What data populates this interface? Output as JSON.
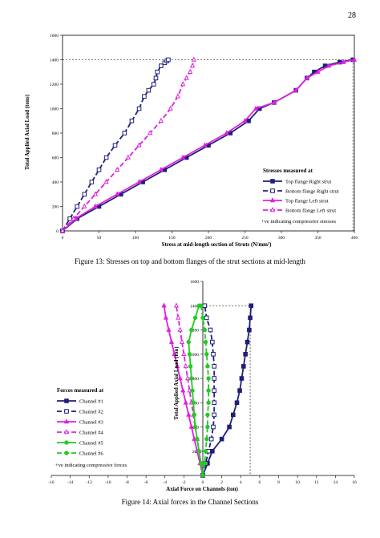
{
  "page_number": "28",
  "figures": [
    {
      "caption": "Figure 13: Stresses on top and bottom flanges of the strut sections at mid-length"
    },
    {
      "caption": "Figure 14: Axial forces in the Channel Sections"
    }
  ],
  "chart_data": [
    {
      "type": "line",
      "xlabel": "Stress at mid-length section of Struts (N/mm²)",
      "ylabel": "Total Applied Axial Load (tons)",
      "xlim": [
        0,
        400
      ],
      "ylim": [
        0,
        1600
      ],
      "xticks": [
        0,
        50,
        100,
        150,
        200,
        250,
        300,
        350,
        400
      ],
      "yticks": [
        0,
        200,
        400,
        600,
        800,
        1000,
        1200,
        1400,
        1600
      ],
      "grid": false,
      "reference_lines": {
        "y": 1400,
        "x": 398
      },
      "legend_title": "Stresses measured at",
      "legend_note": "+ve indicating compressive stresses",
      "legend_position": "bottom-right",
      "series": [
        {
          "name": "Top flange Right strut",
          "color": "#1f1f7a",
          "dash": false,
          "marker": "square",
          "x": [
            0,
            20,
            50,
            80,
            110,
            140,
            170,
            200,
            230,
            255,
            270,
            290,
            320,
            335,
            345,
            360,
            380,
            398
          ],
          "y": [
            0,
            100,
            200,
            300,
            400,
            500,
            600,
            700,
            800,
            900,
            1000,
            1050,
            1150,
            1250,
            1300,
            1350,
            1380,
            1400
          ]
        },
        {
          "name": "Bottom flange Right strut",
          "color": "#1f1f7a",
          "dash": true,
          "marker": "open-square",
          "x": [
            0,
            10,
            20,
            30,
            40,
            50,
            60,
            72,
            85,
            95,
            105,
            112,
            118,
            125,
            128,
            130,
            135,
            140,
            143,
            145
          ],
          "y": [
            0,
            100,
            200,
            300,
            400,
            500,
            600,
            700,
            800,
            900,
            1000,
            1100,
            1150,
            1200,
            1250,
            1300,
            1350,
            1375,
            1390,
            1400
          ]
        },
        {
          "name": "Top flange Left strut",
          "color": "#e020e0",
          "dash": false,
          "marker": "triangle",
          "x": [
            0,
            18,
            45,
            75,
            105,
            135,
            165,
            195,
            225,
            250,
            265,
            290,
            320,
            335,
            350,
            365,
            385,
            400
          ],
          "y": [
            0,
            100,
            200,
            300,
            400,
            500,
            600,
            700,
            800,
            900,
            1000,
            1050,
            1150,
            1250,
            1300,
            1350,
            1380,
            1400
          ]
        },
        {
          "name": "Bottom flange Left strut",
          "color": "#e020e0",
          "dash": true,
          "marker": "open-triangle",
          "x": [
            0,
            15,
            30,
            45,
            60,
            75,
            90,
            105,
            120,
            135,
            148,
            158,
            165,
            170,
            175,
            178,
            180
          ],
          "y": [
            0,
            100,
            200,
            300,
            400,
            500,
            600,
            700,
            800,
            900,
            1000,
            1100,
            1200,
            1250,
            1300,
            1350,
            1400
          ]
        }
      ]
    },
    {
      "type": "line",
      "xlabel": "Axial Force on Channels (ton)",
      "ylabel": "Total Applied Axial Load (ton)",
      "xlim": [
        -16,
        16
      ],
      "ylim": [
        0,
        1600
      ],
      "xticks": [
        -16,
        -14,
        -12,
        -10,
        -8,
        -6,
        -4,
        -2,
        0,
        2,
        4,
        6,
        8,
        10,
        12,
        14,
        16
      ],
      "yticks": [
        200,
        400,
        600,
        800,
        1000,
        1200,
        1400,
        1600
      ],
      "grid": false,
      "reference_lines": {
        "y": 1400,
        "x": 5
      },
      "legend_title": "Forces measured at",
      "legend_note": "+ve indicating compressive forces",
      "legend_position": "left",
      "series": [
        {
          "name": "Channel #1",
          "color": "#1f1f7a",
          "dash": false,
          "marker": "square",
          "x": [
            0,
            0.5,
            1.0,
            2.0,
            2.8,
            3.2,
            3.6,
            3.9,
            4.1,
            4.3,
            4.5,
            4.7,
            4.9,
            5.0,
            5.1
          ],
          "y": [
            0,
            100,
            200,
            300,
            400,
            500,
            600,
            700,
            800,
            900,
            1000,
            1100,
            1200,
            1300,
            1400
          ]
        },
        {
          "name": "Channel #2",
          "color": "#1f1f7a",
          "dash": true,
          "marker": "open-square",
          "x": [
            0,
            0.3,
            0.6,
            0.9,
            1.1,
            1.2,
            1.2,
            1.2,
            1.2,
            1.2,
            1.1,
            1.0,
            0.8,
            0.4,
            0.2
          ],
          "y": [
            0,
            100,
            200,
            300,
            400,
            500,
            600,
            700,
            800,
            900,
            1000,
            1100,
            1200,
            1300,
            1400
          ]
        },
        {
          "name": "Channel #3",
          "color": "#e020e0",
          "dash": false,
          "marker": "triangle",
          "x": [
            0,
            -0.3,
            -0.6,
            -0.9,
            -1.2,
            -1.5,
            -1.8,
            -2.1,
            -2.4,
            -2.7,
            -3.0,
            -3.3,
            -3.6,
            -3.9,
            -4.1
          ],
          "y": [
            0,
            100,
            200,
            300,
            400,
            500,
            600,
            700,
            800,
            900,
            1000,
            1100,
            1200,
            1300,
            1400
          ]
        },
        {
          "name": "Channel #4",
          "color": "#e020e0",
          "dash": true,
          "marker": "open-triangle",
          "x": [
            0,
            -0.2,
            -0.4,
            -0.6,
            -0.8,
            -1.0,
            -1.2,
            -1.4,
            -1.6,
            -1.8,
            -2.0,
            -2.2,
            -2.4,
            -2.6,
            -2.8
          ],
          "y": [
            0,
            100,
            200,
            300,
            400,
            500,
            600,
            700,
            800,
            900,
            1000,
            1100,
            1200,
            1300,
            1400
          ]
        },
        {
          "name": "Channel #5",
          "color": "#22cc22",
          "dash": false,
          "marker": "circle",
          "x": [
            0,
            -0.2,
            -0.4,
            -0.6,
            -0.8,
            -0.9,
            -1.0,
            -1.1,
            -1.2,
            -1.3,
            -1.4,
            -1.5,
            -1.2,
            -0.8,
            -0.4
          ],
          "y": [
            0,
            100,
            200,
            300,
            400,
            500,
            600,
            700,
            800,
            900,
            1000,
            1100,
            1200,
            1300,
            1400
          ]
        },
        {
          "name": "Channel #6",
          "color": "#22cc22",
          "dash": true,
          "marker": "circle",
          "x": [
            0,
            0.2,
            0.3,
            0.4,
            0.5,
            0.5,
            0.6,
            0.6,
            0.6,
            0.5,
            0.4,
            0.3,
            0.2,
            0.0,
            -0.2
          ],
          "y": [
            0,
            100,
            200,
            300,
            400,
            500,
            600,
            700,
            800,
            900,
            1000,
            1100,
            1200,
            1300,
            1400
          ]
        }
      ]
    }
  ]
}
